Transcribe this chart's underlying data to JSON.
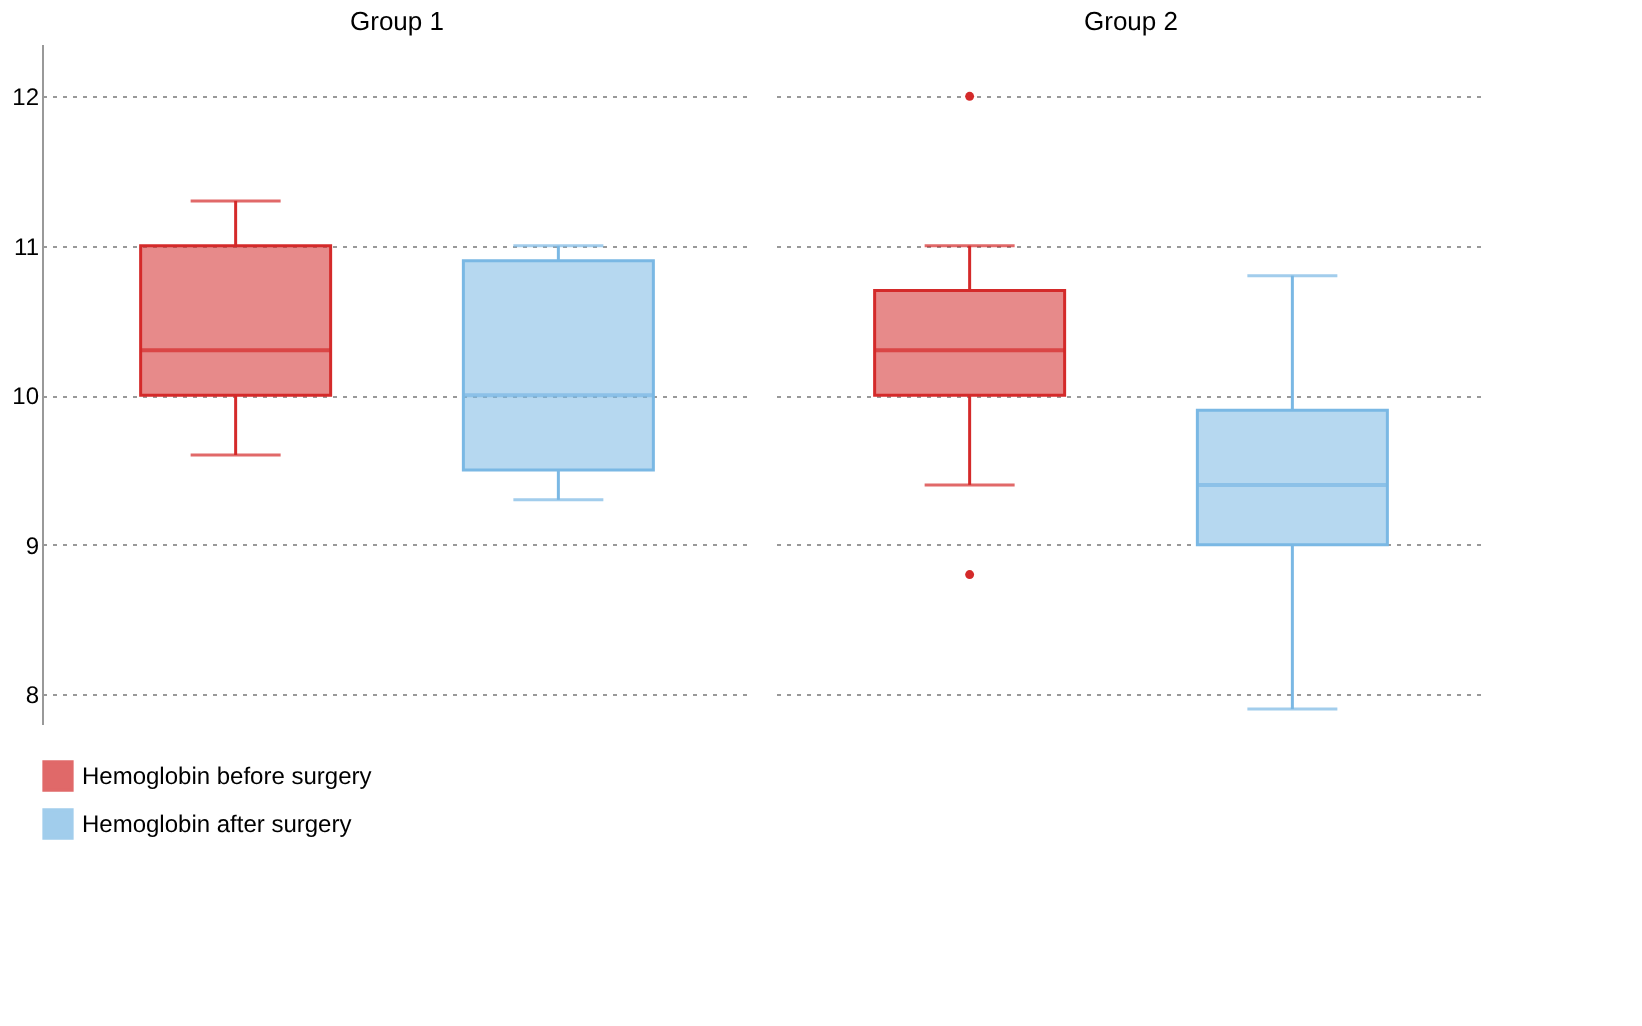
{
  "chart_data": {
    "type": "box",
    "categories": [
      "Group 1",
      "Group 2"
    ],
    "series": [
      {
        "name": "Hemoglobin before surgery",
        "color": "#d42a2a",
        "boxes": [
          {
            "low": 9.6,
            "q1": 10.0,
            "median": 10.3,
            "q3": 11.0,
            "high": 11.3
          },
          {
            "low": 9.4,
            "q1": 10.0,
            "median": 10.3,
            "q3": 10.7,
            "high": 11.0,
            "outliers": [
              12.0,
              8.8
            ]
          }
        ]
      },
      {
        "name": "Hemoglobin after surgery",
        "color": "#7ab8e4",
        "boxes": [
          {
            "low": 9.3,
            "q1": 9.5,
            "median": 10.0,
            "q3": 10.9,
            "high": 11.0
          },
          {
            "low": 7.9,
            "q1": 9.0,
            "median": 9.4,
            "q3": 9.9,
            "high": 10.8
          }
        ]
      }
    ],
    "ylim": [
      7.8,
      12.35
    ],
    "yticks": [
      8,
      9,
      10,
      11,
      12
    ],
    "grid": "y",
    "legend": "bottom"
  }
}
